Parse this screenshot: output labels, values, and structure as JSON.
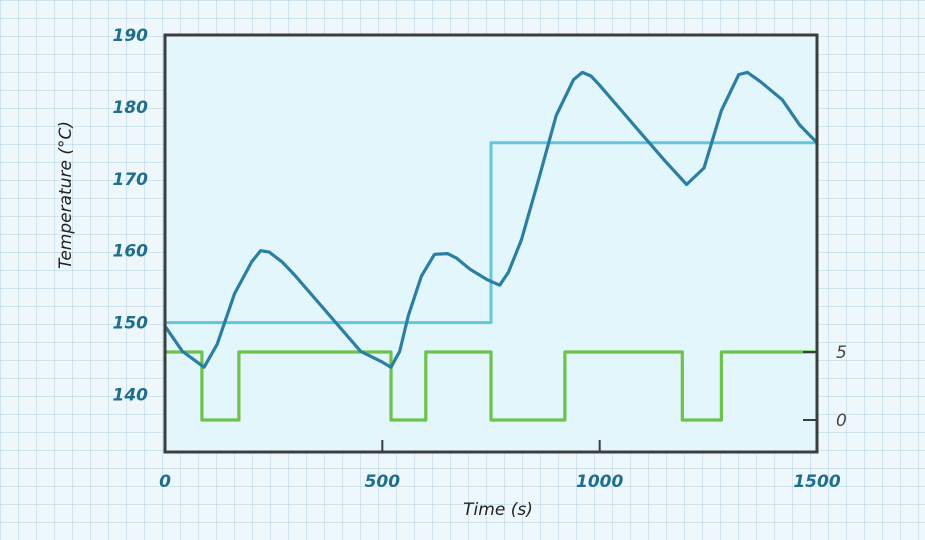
{
  "chart_data": {
    "type": "line",
    "xlabel": "Time (s)",
    "ylabel": "Temperature (°C)",
    "xlim": [
      0,
      1500
    ],
    "ylim": [
      132,
      190
    ],
    "xticks": [
      0,
      500,
      1000,
      1500
    ],
    "yticks": [
      140,
      150,
      160,
      170,
      180,
      190
    ],
    "y2ticks": [
      0,
      5
    ],
    "grid": false,
    "colors": {
      "temperature": "#2b7fa3",
      "setpoint": "#62c6dc",
      "heater": "#6cc24a",
      "frame": "#3d3d3d",
      "plot_bg": "#e3f6fb"
    },
    "series": [
      {
        "x": [
          0,
          40,
          90,
          120,
          160,
          200,
          220,
          240,
          270,
          300,
          350,
          400,
          450,
          500,
          520,
          540,
          560,
          590,
          620,
          650,
          670,
          700,
          740,
          770,
          790,
          820,
          860,
          900,
          940,
          960,
          980,
          1000,
          1050,
          1100,
          1150,
          1200,
          1240,
          1280,
          1320,
          1340,
          1370,
          1420,
          1460,
          1500
        ],
        "y": [
          149.5,
          146,
          143.8,
          147,
          154,
          158.5,
          160,
          159.8,
          158.4,
          156.5,
          153,
          149.5,
          146,
          144.5,
          143.8,
          146,
          151,
          156.5,
          159.5,
          159.6,
          159,
          157.5,
          156,
          155.2,
          157,
          161.5,
          170,
          178.8,
          183.8,
          184.8,
          184.3,
          183,
          179.5,
          176,
          172.5,
          169.2,
          171.5,
          179.5,
          184.5,
          184.8,
          183.5,
          181,
          177.5,
          175
        ]
      },
      {
        "x": [
          0,
          750,
          750,
          1500
        ],
        "y": [
          150,
          150,
          175,
          175
        ]
      },
      {
        "x": [
          0,
          85,
          85,
          170,
          170,
          520,
          520,
          600,
          600,
          750,
          750,
          920,
          920,
          1190,
          1190,
          1280,
          1280,
          1500
        ],
        "y": [
          5,
          5,
          0,
          0,
          5,
          5,
          0,
          0,
          5,
          5,
          0,
          0,
          5,
          5,
          0,
          0,
          5,
          5
        ]
      }
    ]
  }
}
